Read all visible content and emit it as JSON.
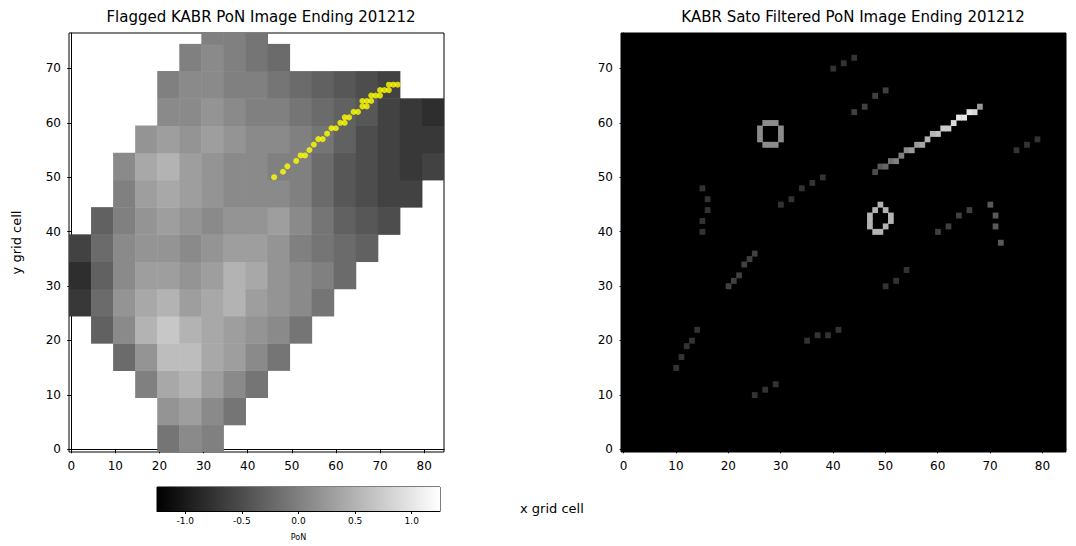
{
  "chart_data": [
    {
      "type": "heatmap",
      "title": "Flagged KABR PoN Image Ending 201212",
      "xlabel": "x grid cell",
      "ylabel": "y grid cell",
      "xlim": [
        -0.5,
        84.5
      ],
      "ylim": [
        -0.5,
        76.5
      ],
      "xticks": [
        0,
        10,
        20,
        30,
        40,
        50,
        60,
        70,
        80
      ],
      "yticks": [
        0,
        10,
        20,
        30,
        40,
        50,
        60,
        70
      ],
      "heatmap": {
        "cell_size": 5,
        "rows": [
          {
            "y": 2,
            "x": 22,
            "values": [
              -0.1,
              0.1,
              0.0
            ]
          },
          {
            "y": 7,
            "x": 22,
            "values": [
              0.2,
              0.3,
              0.1,
              -0.1
            ]
          },
          {
            "y": 12,
            "x": 17,
            "values": [
              0.0,
              0.4,
              0.5,
              0.3,
              0.1,
              -0.1
            ]
          },
          {
            "y": 17,
            "x": 12,
            "values": [
              -0.2,
              0.2,
              0.6,
              0.6,
              0.4,
              0.3,
              0.1,
              -0.1
            ]
          },
          {
            "y": 22,
            "x": 7,
            "values": [
              -0.3,
              0.1,
              0.5,
              0.7,
              0.5,
              0.4,
              0.3,
              0.2,
              0.1,
              -0.1
            ]
          },
          {
            "y": 27,
            "x": 2,
            "values": [
              -0.7,
              -0.2,
              0.2,
              0.4,
              0.5,
              0.3,
              0.4,
              0.5,
              0.3,
              0.2,
              0.1,
              -0.1
            ]
          },
          {
            "y": 32,
            "x": 2,
            "values": [
              -0.8,
              -0.3,
              0.1,
              0.3,
              0.3,
              0.2,
              0.3,
              0.5,
              0.4,
              0.2,
              0.1,
              0.0,
              -0.2
            ]
          },
          {
            "y": 37,
            "x": 2,
            "values": [
              -0.6,
              -0.2,
              0.1,
              0.2,
              0.2,
              0.1,
              0.2,
              0.3,
              0.3,
              0.2,
              0.0,
              -0.1,
              -0.2,
              -0.3
            ]
          },
          {
            "y": 42,
            "x": 7,
            "values": [
              -0.3,
              0.0,
              0.2,
              0.3,
              0.2,
              0.1,
              0.2,
              0.2,
              0.3,
              0.1,
              -0.1,
              -0.3,
              -0.4,
              -0.5
            ]
          },
          {
            "y": 47,
            "x": 12,
            "values": [
              0.0,
              0.3,
              0.4,
              0.3,
              0.2,
              0.1,
              0.1,
              0.1,
              0.0,
              -0.2,
              -0.4,
              -0.5,
              -0.6,
              -0.6
            ]
          },
          {
            "y": 52,
            "x": 12,
            "values": [
              0.1,
              0.4,
              0.5,
              0.3,
              0.2,
              0.1,
              0.1,
              0.0,
              0.0,
              -0.2,
              -0.4,
              -0.5,
              -0.6,
              -0.7,
              -0.6
            ]
          },
          {
            "y": 57,
            "x": 17,
            "values": [
              0.2,
              0.3,
              0.2,
              0.3,
              0.2,
              0.1,
              0.1,
              0.0,
              -0.1,
              -0.3,
              -0.5,
              -0.6,
              -0.7,
              -0.7
            ]
          },
          {
            "y": 62,
            "x": 22,
            "values": [
              0.1,
              0.1,
              0.2,
              0.1,
              0.0,
              0.0,
              -0.1,
              -0.2,
              -0.3,
              -0.4,
              -0.6,
              -0.7,
              -0.8
            ]
          },
          {
            "y": 67,
            "x": 22,
            "values": [
              0.0,
              0.1,
              0.1,
              0.0,
              0.0,
              -0.1,
              -0.2,
              -0.3,
              -0.4,
              -0.5,
              -0.6
            ]
          },
          {
            "y": 72,
            "x": 27,
            "values": [
              0.0,
              0.1,
              0.0,
              -0.1,
              -0.2
            ]
          },
          {
            "y": 77,
            "x": 32,
            "values": [
              0.0,
              0.0,
              -0.1
            ]
          }
        ]
      },
      "colorbar": {
        "label": "PoN",
        "range": [
          -1.25,
          1.25
        ],
        "ticks": [
          {
            "value": -1.0,
            "label": "-1.0"
          },
          {
            "value": -0.5,
            "label": "-0.5"
          },
          {
            "value": 0.0,
            "label": "0.0"
          },
          {
            "value": 0.5,
            "label": "0.5"
          },
          {
            "value": 1.0,
            "label": "1.0"
          }
        ]
      },
      "series": [
        {
          "type": "scatter",
          "color": "#ffff00",
          "marker": "circle",
          "x": [
            46,
            48,
            49,
            51,
            52,
            53,
            54,
            55,
            56,
            57,
            58,
            59,
            60,
            61,
            62,
            62,
            63,
            64,
            65,
            66,
            66,
            67,
            67,
            68,
            68,
            69,
            70,
            70,
            71,
            72,
            72,
            73,
            74
          ],
          "y": [
            50,
            51,
            52,
            53,
            54,
            54,
            55,
            56,
            57,
            57,
            58,
            59,
            59,
            60,
            60,
            61,
            61,
            62,
            62,
            63,
            64,
            63,
            64,
            64,
            65,
            65,
            65,
            66,
            66,
            66,
            67,
            67,
            67
          ]
        }
      ]
    },
    {
      "type": "heatmap",
      "title": "KABR Sato Filtered PoN Image Ending 201212",
      "xlim": [
        -0.5,
        84.5
      ],
      "ylim": [
        -0.5,
        76.5
      ],
      "xticks": [
        0,
        10,
        20,
        30,
        40,
        50,
        60,
        70,
        80
      ],
      "yticks": [
        0,
        10,
        20,
        30,
        40,
        50,
        60,
        70
      ],
      "heatmap": {
        "cell_size": 1,
        "range": [
          0,
          1
        ],
        "cells": [
          [
            48,
            51,
            0.3
          ],
          [
            49,
            52,
            0.35
          ],
          [
            50,
            52,
            0.4
          ],
          [
            51,
            53,
            0.45
          ],
          [
            52,
            53,
            0.5
          ],
          [
            53,
            54,
            0.5
          ],
          [
            54,
            55,
            0.55
          ],
          [
            55,
            55,
            0.6
          ],
          [
            56,
            56,
            0.6
          ],
          [
            57,
            56,
            0.65
          ],
          [
            58,
            57,
            0.7
          ],
          [
            59,
            58,
            0.7
          ],
          [
            60,
            58,
            0.75
          ],
          [
            61,
            59,
            0.8
          ],
          [
            62,
            59,
            0.8
          ],
          [
            63,
            60,
            0.85
          ],
          [
            64,
            61,
            0.9
          ],
          [
            65,
            61,
            0.9
          ],
          [
            66,
            62,
            0.9
          ],
          [
            67,
            62,
            0.85
          ],
          [
            68,
            63,
            0.6
          ],
          [
            26,
            57,
            0.55
          ],
          [
            26,
            58,
            0.55
          ],
          [
            26,
            59,
            0.55
          ],
          [
            27,
            60,
            0.55
          ],
          [
            28,
            60,
            0.55
          ],
          [
            29,
            60,
            0.55
          ],
          [
            30,
            59,
            0.55
          ],
          [
            30,
            58,
            0.55
          ],
          [
            30,
            57,
            0.55
          ],
          [
            29,
            56,
            0.55
          ],
          [
            28,
            56,
            0.55
          ],
          [
            27,
            56,
            0.55
          ],
          [
            47,
            41,
            0.7
          ],
          [
            47,
            42,
            0.7
          ],
          [
            47,
            43,
            0.7
          ],
          [
            48,
            44,
            0.7
          ],
          [
            49,
            45,
            0.7
          ],
          [
            50,
            44,
            0.7
          ],
          [
            51,
            43,
            0.7
          ],
          [
            51,
            42,
            0.7
          ],
          [
            50,
            41,
            0.7
          ],
          [
            49,
            40,
            0.7
          ],
          [
            48,
            40,
            0.7
          ],
          [
            20,
            30,
            0.25
          ],
          [
            21,
            31,
            0.25
          ],
          [
            22,
            32,
            0.25
          ],
          [
            23,
            34,
            0.25
          ],
          [
            24,
            35,
            0.25
          ],
          [
            25,
            36,
            0.25
          ],
          [
            10,
            15,
            0.2
          ],
          [
            11,
            17,
            0.2
          ],
          [
            12,
            19,
            0.2
          ],
          [
            13,
            20,
            0.2
          ],
          [
            14,
            22,
            0.2
          ],
          [
            35,
            20,
            0.2
          ],
          [
            37,
            21,
            0.2
          ],
          [
            39,
            21,
            0.2
          ],
          [
            41,
            22,
            0.2
          ],
          [
            60,
            40,
            0.25
          ],
          [
            62,
            41,
            0.25
          ],
          [
            64,
            43,
            0.25
          ],
          [
            66,
            44,
            0.25
          ],
          [
            70,
            45,
            0.35
          ],
          [
            71,
            43,
            0.35
          ],
          [
            71,
            41,
            0.35
          ],
          [
            72,
            38,
            0.35
          ],
          [
            30,
            45,
            0.2
          ],
          [
            32,
            46,
            0.2
          ],
          [
            34,
            48,
            0.2
          ],
          [
            36,
            49,
            0.2
          ],
          [
            38,
            50,
            0.2
          ],
          [
            44,
            62,
            0.25
          ],
          [
            46,
            63,
            0.25
          ],
          [
            48,
            65,
            0.25
          ],
          [
            50,
            66,
            0.25
          ],
          [
            15,
            40,
            0.2
          ],
          [
            15,
            42,
            0.2
          ],
          [
            16,
            44,
            0.2
          ],
          [
            16,
            46,
            0.2
          ],
          [
            15,
            48,
            0.2
          ],
          [
            40,
            70,
            0.2
          ],
          [
            42,
            71,
            0.2
          ],
          [
            44,
            72,
            0.2
          ],
          [
            75,
            55,
            0.2
          ],
          [
            77,
            56,
            0.2
          ],
          [
            79,
            57,
            0.2
          ],
          [
            25,
            10,
            0.2
          ],
          [
            27,
            11,
            0.2
          ],
          [
            29,
            12,
            0.2
          ],
          [
            50,
            30,
            0.2
          ],
          [
            52,
            31,
            0.2
          ],
          [
            54,
            33,
            0.2
          ]
        ]
      }
    }
  ]
}
